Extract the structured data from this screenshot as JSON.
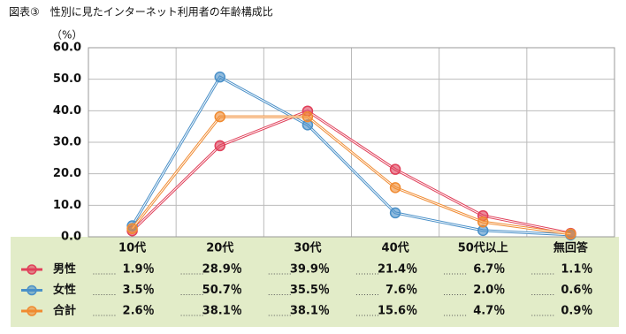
{
  "chart_data": {
    "type": "line",
    "title": "図表③　性別に見たインターネット利用者の年齢構成比",
    "y_unit": "（%）",
    "categories": [
      "10代",
      "20代",
      "30代",
      "40代",
      "50代以上",
      "無回答"
    ],
    "series": [
      {
        "name": "男性",
        "color": "#e0405a",
        "values": [
          1.9,
          28.9,
          39.9,
          21.4,
          6.7,
          1.1
        ],
        "value_labels": [
          "1.9％",
          "28.9％",
          "39.9％",
          "21.4％",
          "6.7％",
          "1.1％"
        ]
      },
      {
        "name": "女性",
        "color": "#4a90c8",
        "values": [
          3.5,
          50.7,
          35.5,
          7.6,
          2.0,
          0.6
        ],
        "value_labels": [
          "3.5％",
          "50.7％",
          "35.5％",
          "7.6％",
          "2.0％",
          "0.6％"
        ]
      },
      {
        "name": "合計",
        "color": "#f08a30",
        "values": [
          2.6,
          38.1,
          38.1,
          15.6,
          4.7,
          0.9
        ],
        "value_labels": [
          "2.6％",
          "38.1％",
          "38.1％",
          "15.6％",
          "4.7％",
          "0.9％"
        ]
      }
    ],
    "ylim": [
      0,
      60
    ],
    "yticks": [
      {
        "value": 0,
        "label": "0.0"
      },
      {
        "value": 10,
        "label": "10.0"
      },
      {
        "value": 20,
        "label": "20.0"
      },
      {
        "value": 30,
        "label": "30.0"
      },
      {
        "value": 40,
        "label": "40.0"
      },
      {
        "value": 50,
        "label": "50.0"
      },
      {
        "value": 60,
        "label": "60.0"
      }
    ],
    "grid": true
  }
}
